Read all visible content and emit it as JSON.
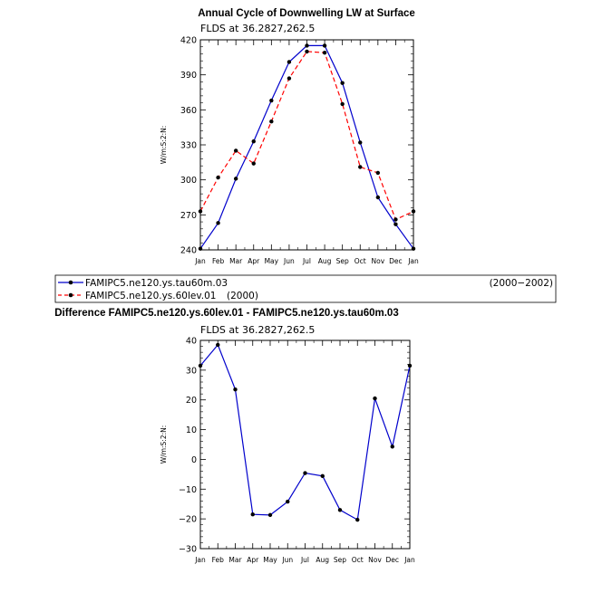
{
  "chart_data": [
    {
      "type": "line",
      "title": "Annual Cycle of Downwelling LW at Surface",
      "subtitle": "FLDS at 36.2827,262.5",
      "ylabel": "W/m:S:2:N:",
      "xlabel": "",
      "categories": [
        "Jan",
        "Feb",
        "Mar",
        "Apr",
        "May",
        "Jun",
        "Jul",
        "Aug",
        "Sep",
        "Oct",
        "Nov",
        "Dec",
        "Jan"
      ],
      "ylim": [
        240,
        420
      ],
      "yticks": [
        240,
        270,
        300,
        330,
        360,
        390,
        420
      ],
      "grid": false,
      "series": [
        {
          "name": "FAMIPC5.ne120.ys.tau60m.03",
          "color": "#0000cc",
          "dash": false,
          "values": [
            241,
            263,
            301,
            333,
            368,
            401,
            415,
            415,
            383,
            332,
            285,
            262,
            241
          ]
        },
        {
          "name": "FAMIPC5.ne120.ys.60lev.01",
          "color": "#ff0000",
          "dash": true,
          "values": [
            273,
            302,
            325,
            314,
            350,
            387,
            410,
            409,
            365,
            311,
            306,
            266,
            273
          ]
        }
      ]
    },
    {
      "type": "line",
      "title": "Difference FAMIPC5.ne120.ys.60lev.01 - FAMIPC5.ne120.ys.tau60m.03",
      "subtitle": "FLDS at 36.2827,262.5",
      "ylabel": "W/m:S:2:N:",
      "xlabel": "",
      "categories": [
        "Jan",
        "Feb",
        "Mar",
        "Apr",
        "May",
        "Jun",
        "Jul",
        "Aug",
        "Sep",
        "Oct",
        "Nov",
        "Dec",
        "Jan"
      ],
      "ylim": [
        -30,
        40
      ],
      "yticks": [
        -30,
        -20,
        -10,
        0,
        10,
        20,
        30,
        40
      ],
      "grid": false,
      "series": [
        {
          "name": "Difference",
          "color": "#0000cc",
          "dash": false,
          "values": [
            31.5,
            38.5,
            23.5,
            -18.5,
            -18.7,
            -14.2,
            -4.6,
            -5.6,
            -17.0,
            -20.3,
            20.5,
            4.3,
            31.5
          ]
        }
      ]
    }
  ],
  "legend": {
    "entries": [
      {
        "label": "FAMIPC5.ne120.ys.tau60m.03",
        "period": "(2000−2002)"
      },
      {
        "label": "FAMIPC5.ne120.ys.60lev.01",
        "period": "(2000)"
      }
    ]
  }
}
